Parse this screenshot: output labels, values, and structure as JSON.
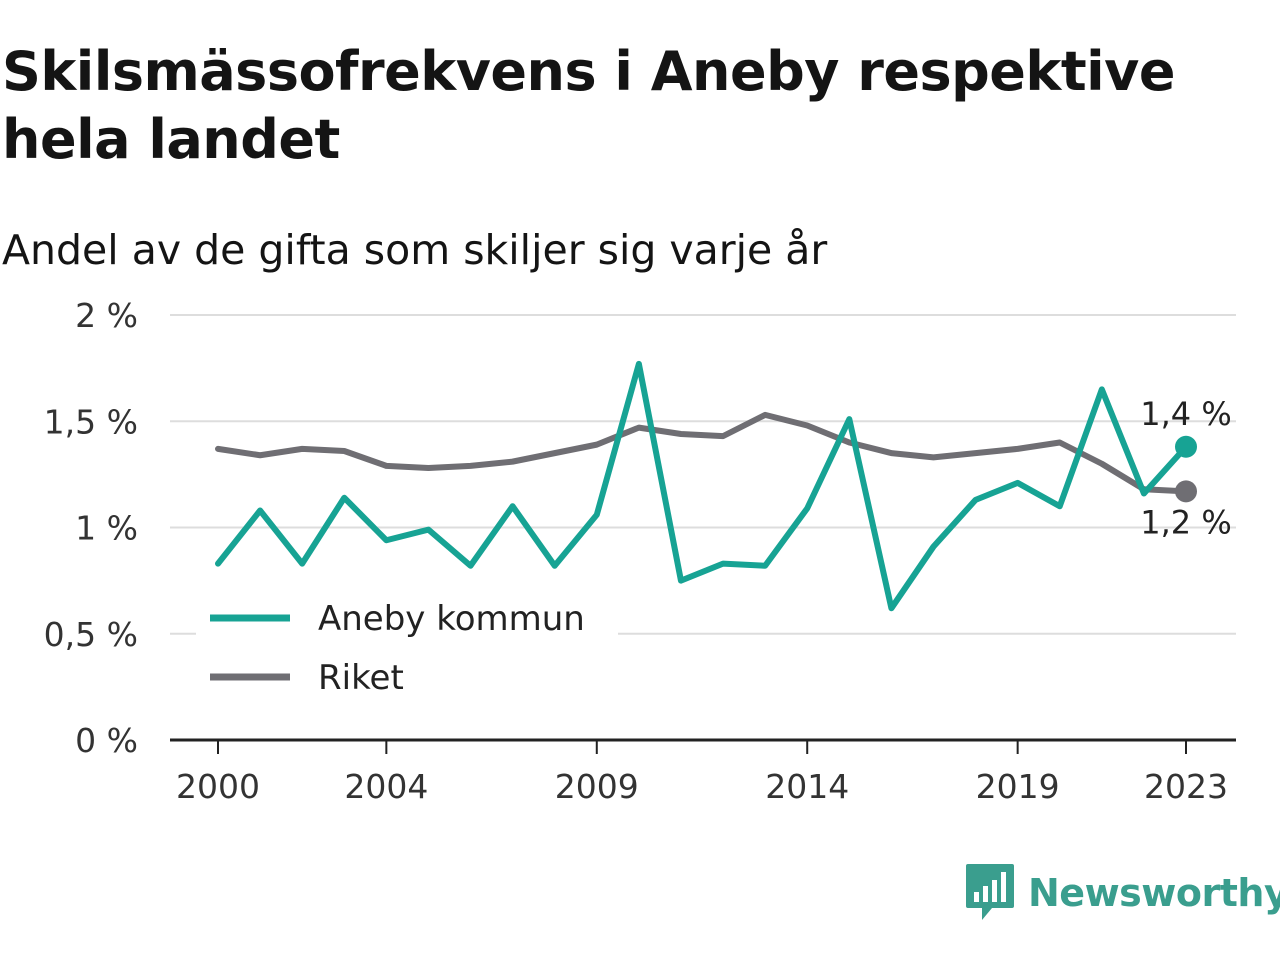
{
  "title": "Skilsmässofrekvens i Aneby respektive hela landet",
  "subtitle": "Andel av de gifta som skiljer sig varje år",
  "brand": {
    "name": "Newsworthy",
    "icon": "newsworthy-logo-icon",
    "color": "#3a9e8e"
  },
  "colors": {
    "aneby": "#17a394",
    "riket": "#6f6e73",
    "grid": "#dddddd",
    "axis": "#222222"
  },
  "chart_data": {
    "type": "line",
    "x": [
      2000,
      2001,
      2002,
      2003,
      2004,
      2005,
      2006,
      2007,
      2008,
      2009,
      2010,
      2011,
      2012,
      2013,
      2014,
      2015,
      2016,
      2017,
      2018,
      2019,
      2020,
      2021,
      2022,
      2023
    ],
    "x_ticks": [
      2000,
      2004,
      2009,
      2014,
      2019,
      2023
    ],
    "x_tick_labels": [
      "2000",
      "2004",
      "2009",
      "2014",
      "2019",
      "2023"
    ],
    "y_ticks": [
      0,
      0.5,
      1,
      1.5,
      2
    ],
    "y_tick_labels": [
      "0 %",
      "0,5 %",
      "1 %",
      "1,5 %",
      "2 %"
    ],
    "ylim": [
      0,
      2
    ],
    "grid": true,
    "legend_position": "left-center",
    "series": [
      {
        "name": "Aneby kommun",
        "color": "#17a394",
        "values": [
          0.83,
          1.08,
          0.83,
          1.14,
          0.94,
          0.99,
          0.82,
          1.1,
          0.82,
          1.06,
          1.77,
          0.75,
          0.83,
          0.82,
          1.09,
          1.51,
          0.62,
          0.91,
          1.13,
          1.21,
          1.1,
          1.65,
          1.16,
          1.38
        ],
        "end_label": "1,4 %"
      },
      {
        "name": "Riket",
        "color": "#6f6e73",
        "values": [
          1.37,
          1.34,
          1.37,
          1.36,
          1.29,
          1.28,
          1.29,
          1.31,
          1.35,
          1.39,
          1.47,
          1.44,
          1.43,
          1.53,
          1.48,
          1.4,
          1.35,
          1.33,
          1.35,
          1.37,
          1.4,
          1.3,
          1.18,
          1.17
        ],
        "end_label": "1,2 %"
      }
    ]
  }
}
